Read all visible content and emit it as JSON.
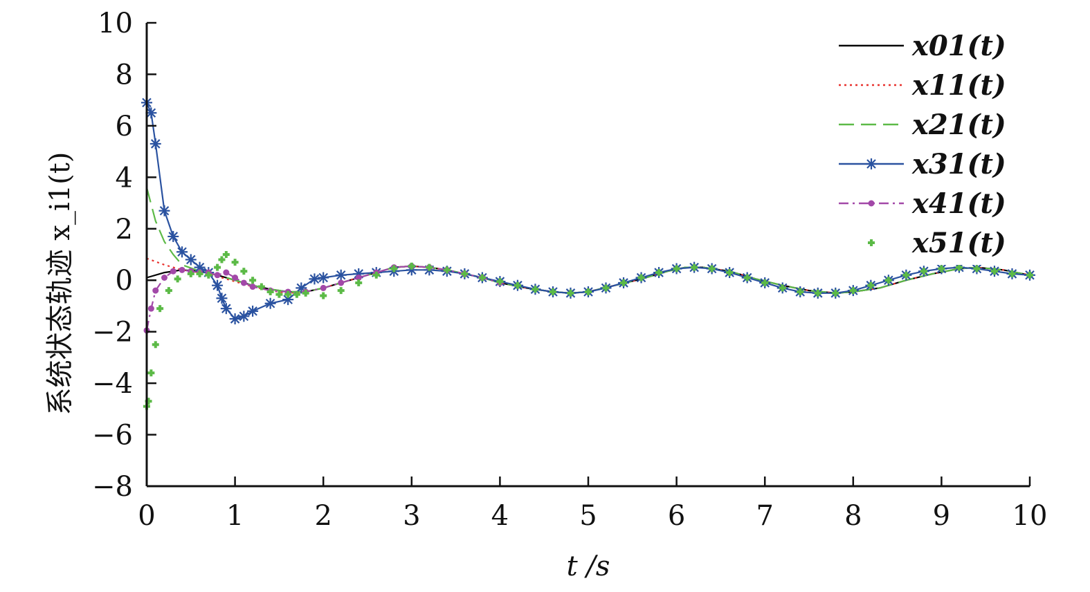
{
  "chart_data": {
    "type": "line",
    "xlabel": "t /s",
    "ylabel": "系统状态轨迹 x_i1(t)",
    "xlim": [
      0,
      10
    ],
    "ylim": [
      -8,
      10
    ],
    "xticks": [
      "0",
      "1",
      "2",
      "3",
      "4",
      "5",
      "6",
      "7",
      "8",
      "9",
      "10"
    ],
    "yticks": [
      "−8",
      "−6",
      "−4",
      "−2",
      "0",
      "2",
      "4",
      "6",
      "8",
      "10"
    ],
    "grid": false,
    "legend_position": "top-right",
    "series": [
      {
        "name": "x01(t)",
        "color": "#000000",
        "style": "solid",
        "marker": "none",
        "x": [
          0,
          0.2,
          0.4,
          0.6,
          0.8,
          1.0,
          1.2,
          1.4,
          1.6,
          1.8,
          2.0,
          2.2,
          2.4,
          2.6,
          2.8,
          3.0,
          3.2,
          3.4,
          3.6,
          3.8,
          4.0,
          4.3,
          4.6,
          4.8,
          5.0,
          5.3,
          5.6,
          5.9,
          6.1,
          6.3,
          6.6,
          6.9,
          7.2,
          7.5,
          7.8,
          8.0,
          8.3,
          8.6,
          8.9,
          9.2,
          9.4,
          9.7,
          10.0
        ],
        "y": [
          0.1,
          0.3,
          0.4,
          0.35,
          0.2,
          0.0,
          -0.2,
          -0.35,
          -0.45,
          -0.45,
          -0.3,
          -0.1,
          0.1,
          0.3,
          0.5,
          0.55,
          0.5,
          0.4,
          0.25,
          0.1,
          -0.1,
          -0.3,
          -0.45,
          -0.5,
          -0.45,
          -0.2,
          0.05,
          0.35,
          0.5,
          0.5,
          0.35,
          0.05,
          -0.2,
          -0.4,
          -0.5,
          -0.45,
          -0.3,
          0.0,
          0.25,
          0.45,
          0.5,
          0.4,
          0.2
        ]
      },
      {
        "name": "x11(t)",
        "color": "#e8312d",
        "style": "dotted",
        "marker": "none",
        "x": [
          0,
          0.2,
          0.4,
          0.6,
          0.8,
          1.0,
          1.2,
          1.4,
          1.6,
          1.8,
          2.0,
          2.2,
          2.4,
          2.6,
          2.8,
          3.0,
          3.2,
          3.4,
          3.6,
          3.8,
          4.0,
          4.3,
          4.6,
          4.8,
          5.0,
          5.3,
          5.6,
          5.9,
          6.1,
          6.3,
          6.6,
          6.9,
          7.2,
          7.5,
          7.8,
          8.0,
          8.3,
          8.6,
          8.9,
          9.2,
          9.4,
          9.7,
          10.0
        ],
        "y": [
          0.85,
          0.6,
          0.4,
          0.3,
          0.15,
          -0.05,
          -0.25,
          -0.4,
          -0.5,
          -0.45,
          -0.3,
          -0.1,
          0.1,
          0.3,
          0.5,
          0.55,
          0.5,
          0.4,
          0.25,
          0.1,
          -0.1,
          -0.3,
          -0.45,
          -0.5,
          -0.45,
          -0.2,
          0.05,
          0.35,
          0.5,
          0.5,
          0.35,
          0.05,
          -0.2,
          -0.4,
          -0.5,
          -0.45,
          -0.3,
          0.0,
          0.25,
          0.45,
          0.5,
          0.4,
          0.2
        ]
      },
      {
        "name": "x21(t)",
        "color": "#5cba47",
        "style": "dashed",
        "marker": "none",
        "x": [
          0,
          0.1,
          0.2,
          0.3,
          0.4,
          0.6,
          0.8,
          1.0,
          1.2,
          1.4,
          1.6,
          1.8,
          2.0,
          2.2,
          2.4,
          2.6,
          2.8,
          3.0,
          3.2,
          3.4,
          3.6,
          3.8,
          4.0,
          4.3,
          4.6,
          4.8,
          5.0,
          5.3,
          5.6,
          5.9,
          6.1,
          6.3,
          6.6,
          6.9,
          7.2,
          7.5,
          7.8,
          8.0,
          8.3,
          8.6,
          8.9,
          9.2,
          9.4,
          9.7,
          10.0
        ],
        "y": [
          3.6,
          2.3,
          1.5,
          1.0,
          0.6,
          0.35,
          0.2,
          0.0,
          -0.2,
          -0.35,
          -0.45,
          -0.45,
          -0.3,
          -0.1,
          0.1,
          0.3,
          0.5,
          0.55,
          0.5,
          0.4,
          0.25,
          0.1,
          -0.1,
          -0.3,
          -0.45,
          -0.5,
          -0.45,
          -0.2,
          0.05,
          0.35,
          0.5,
          0.5,
          0.35,
          0.05,
          -0.2,
          -0.4,
          -0.5,
          -0.45,
          -0.3,
          0.0,
          0.25,
          0.45,
          0.5,
          0.4,
          0.2
        ]
      },
      {
        "name": "x31(t)",
        "color": "#2a52a0",
        "style": "solid",
        "marker": "asterisk",
        "x": [
          0,
          0.05,
          0.1,
          0.2,
          0.3,
          0.4,
          0.5,
          0.6,
          0.7,
          0.8,
          0.85,
          0.9,
          1.0,
          1.1,
          1.2,
          1.4,
          1.6,
          1.75,
          1.9,
          2.0,
          2.2,
          2.4,
          2.6,
          2.8,
          3.0,
          3.2,
          3.4,
          3.6,
          3.8,
          4.0,
          4.2,
          4.4,
          4.6,
          4.8,
          5.0,
          5.2,
          5.4,
          5.6,
          5.8,
          6.0,
          6.2,
          6.4,
          6.6,
          6.8,
          7.0,
          7.2,
          7.4,
          7.6,
          7.8,
          8.0,
          8.2,
          8.4,
          8.6,
          8.8,
          9.0,
          9.2,
          9.4,
          9.6,
          9.8,
          10.0
        ],
        "y": [
          6.9,
          6.5,
          5.3,
          2.7,
          1.7,
          1.1,
          0.8,
          0.5,
          0.3,
          -0.2,
          -0.7,
          -1.1,
          -1.5,
          -1.4,
          -1.2,
          -0.9,
          -0.75,
          -0.3,
          0.05,
          0.1,
          0.2,
          0.25,
          0.3,
          0.35,
          0.4,
          0.4,
          0.35,
          0.25,
          0.1,
          -0.05,
          -0.2,
          -0.35,
          -0.45,
          -0.5,
          -0.45,
          -0.3,
          -0.1,
          0.1,
          0.3,
          0.45,
          0.5,
          0.45,
          0.3,
          0.1,
          -0.1,
          -0.3,
          -0.45,
          -0.5,
          -0.5,
          -0.4,
          -0.2,
          0.0,
          0.2,
          0.35,
          0.45,
          0.5,
          0.45,
          0.35,
          0.25,
          0.2
        ]
      },
      {
        "name": "x41(t)",
        "color": "#a248a8",
        "style": "dashdot",
        "marker": "dot",
        "x": [
          0,
          0.05,
          0.1,
          0.2,
          0.3,
          0.4,
          0.5,
          0.6,
          0.7,
          0.8,
          0.9,
          1.0,
          1.1,
          1.2,
          1.4,
          1.6,
          1.8,
          2.0,
          2.2,
          2.4,
          2.6,
          2.8,
          3.0,
          3.2,
          3.4,
          3.6,
          3.8,
          4.0
        ],
        "y": [
          -1.95,
          -1.1,
          -0.4,
          0.1,
          0.35,
          0.4,
          0.35,
          0.3,
          0.3,
          0.2,
          0.3,
          0.1,
          -0.1,
          -0.25,
          -0.4,
          -0.45,
          -0.45,
          -0.3,
          -0.1,
          0.1,
          0.3,
          0.5,
          0.55,
          0.5,
          0.4,
          0.25,
          0.1,
          -0.1
        ]
      },
      {
        "name": "x51(t)",
        "color": "#5cba47",
        "style": "none",
        "marker": "plus",
        "x": [
          0,
          0.02,
          0.05,
          0.1,
          0.15,
          0.25,
          0.35,
          0.5,
          0.6,
          0.7,
          0.8,
          0.85,
          0.9,
          1.0,
          1.1,
          1.2,
          1.3,
          1.4,
          1.5,
          1.6,
          1.7,
          1.8,
          2.0,
          2.2,
          2.4,
          2.6,
          2.8,
          3.0,
          3.2,
          3.4,
          3.6,
          3.8,
          4.0,
          4.2,
          4.4,
          4.6,
          4.8,
          5.0,
          5.2,
          5.4,
          5.6,
          5.8,
          6.0,
          6.2,
          6.4,
          6.6,
          6.8,
          7.0,
          7.2,
          7.4,
          7.6,
          7.8,
          8.0,
          8.2,
          8.4,
          8.6,
          8.8,
          9.0,
          9.2,
          9.4,
          9.6,
          9.8,
          10.0
        ],
        "y": [
          -4.9,
          -4.7,
          -3.6,
          -2.5,
          -1.1,
          -0.4,
          0.05,
          0.25,
          0.25,
          0.2,
          0.5,
          0.8,
          1.0,
          0.7,
          0.35,
          0.0,
          -0.25,
          -0.45,
          -0.55,
          -0.55,
          -0.55,
          -0.5,
          -0.6,
          -0.4,
          -0.1,
          0.2,
          0.45,
          0.55,
          0.5,
          0.4,
          0.25,
          0.1,
          -0.05,
          -0.2,
          -0.35,
          -0.45,
          -0.5,
          -0.45,
          -0.3,
          -0.1,
          0.1,
          0.3,
          0.45,
          0.5,
          0.45,
          0.3,
          0.1,
          -0.1,
          -0.3,
          -0.45,
          -0.5,
          -0.5,
          -0.4,
          -0.2,
          0.0,
          0.2,
          0.35,
          0.45,
          0.5,
          0.45,
          0.35,
          0.25,
          0.2
        ]
      }
    ]
  }
}
